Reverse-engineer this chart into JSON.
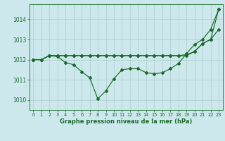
{
  "xlabel": "Graphe pression niveau de la mer (hPa)",
  "background_color": "#cce8ec",
  "grid_color": "#aacccc",
  "line_color": "#1a6b2a",
  "ylim": [
    1009.5,
    1014.75
  ],
  "xlim": [
    -0.5,
    23.5
  ],
  "yticks": [
    1010,
    1011,
    1012,
    1013,
    1014
  ],
  "xticks": [
    0,
    1,
    2,
    3,
    4,
    5,
    6,
    7,
    8,
    9,
    10,
    11,
    12,
    13,
    14,
    15,
    16,
    17,
    18,
    19,
    20,
    21,
    22,
    23
  ],
  "series": [
    [
      1012.0,
      1012.0,
      1012.2,
      1012.15,
      1011.85,
      1011.75,
      1011.4,
      1011.1,
      1010.05,
      1010.45,
      1011.05,
      1011.5,
      1011.55,
      1011.55,
      1011.35,
      1011.3,
      1011.35,
      1011.55,
      1011.8,
      1012.3,
      1012.75,
      1013.0,
      1013.5,
      1014.5
    ],
    [
      1012.0,
      1012.0,
      1012.2,
      1012.2,
      1012.2,
      1012.2,
      1012.2,
      1012.2,
      1012.2,
      1012.2,
      1012.2,
      1012.2,
      1012.2,
      1012.2,
      1012.2,
      1012.2,
      1012.2,
      1012.2,
      1012.2,
      1012.25,
      1012.4,
      1012.8,
      1013.0,
      1014.5
    ],
    [
      1012.0,
      1012.0,
      1012.2,
      1012.2,
      1012.2,
      1012.2,
      1012.2,
      1012.2,
      1012.2,
      1012.2,
      1012.2,
      1012.2,
      1012.2,
      1012.2,
      1012.2,
      1012.2,
      1012.2,
      1012.2,
      1012.2,
      1012.2,
      1012.4,
      1012.8,
      1013.0,
      1013.5
    ]
  ]
}
